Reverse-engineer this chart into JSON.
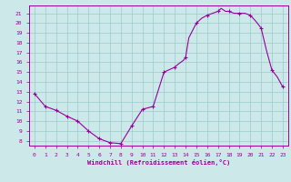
{
  "hours": [
    0,
    1,
    2,
    2.5,
    3,
    4,
    4.5,
    5,
    5.5,
    6,
    6.5,
    7,
    7.5,
    8,
    9,
    10,
    11,
    12,
    13,
    13.3,
    13.8,
    14,
    14.3,
    15,
    15.5,
    16,
    16.5,
    17,
    17.3,
    17.7,
    18,
    18.5,
    19,
    19.5,
    20,
    20.5,
    21,
    21.5,
    22,
    22.5,
    23
  ],
  "temps": [
    12.8,
    11.5,
    11.1,
    10.8,
    10.5,
    10.0,
    9.5,
    9.0,
    8.6,
    8.2,
    8.0,
    7.8,
    7.75,
    7.7,
    9.5,
    11.2,
    11.5,
    15.0,
    15.5,
    15.8,
    16.2,
    16.5,
    18.5,
    20.0,
    20.5,
    20.8,
    21.0,
    21.2,
    21.5,
    21.2,
    21.2,
    21.0,
    21.0,
    21.0,
    20.8,
    20.2,
    19.5,
    17.2,
    15.2,
    14.5,
    13.5
  ],
  "marker_x": [
    0,
    1,
    2,
    3,
    4,
    5,
    6,
    7,
    8,
    9,
    10,
    11,
    12,
    13,
    14,
    15,
    16,
    17,
    18,
    19,
    20,
    21,
    22,
    23
  ],
  "marker_y": [
    12.8,
    11.5,
    11.1,
    10.5,
    10.0,
    9.0,
    8.2,
    7.8,
    7.7,
    9.5,
    11.2,
    11.5,
    15.0,
    15.5,
    16.5,
    20.0,
    20.8,
    21.2,
    21.2,
    21.0,
    20.8,
    19.5,
    15.2,
    13.5
  ],
  "line_color": "#990099",
  "bg_color": "#cce8e8",
  "grid_color": "#99cccc",
  "xlabel": "Windchill (Refroidissement éolien,°C)",
  "yticks": [
    8,
    9,
    10,
    11,
    12,
    13,
    14,
    15,
    16,
    17,
    18,
    19,
    20,
    21
  ],
  "ylim": [
    7.5,
    21.8
  ],
  "xlim": [
    -0.5,
    23.5
  ]
}
